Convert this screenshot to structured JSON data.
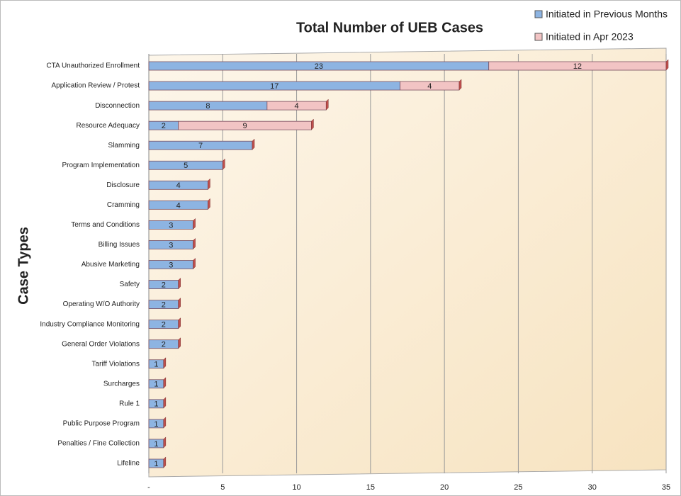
{
  "chart_data": {
    "type": "stacked_barh",
    "title": "Total Number of UEB Cases",
    "y_label": "Case Types",
    "categories": [
      "CTA Unauthorized Enrollment",
      "Application Review / Protest",
      "Disconnection",
      "Resource Adequacy",
      "Slamming",
      "Program Implementation",
      "Disclosure",
      "Cramming",
      "Terms and Conditions",
      "Billing Issues",
      "Abusive Marketing",
      "Safety",
      "Operating W/O Authority",
      "Industry Compliance Monitoring",
      "General Order Violations",
      "Tariff Violations",
      "Surcharges",
      "Rule 1",
      "Public Purpose Program",
      "Penalties / Fine Collection",
      "Lifeline"
    ],
    "series": [
      {
        "name": "Initiated in Previous Months",
        "color": "#8db4e2",
        "values": [
          23,
          17,
          8,
          2,
          7,
          5,
          4,
          4,
          3,
          3,
          3,
          2,
          2,
          2,
          2,
          1,
          1,
          1,
          1,
          1,
          1
        ]
      },
      {
        "name": "Initiated in Apr 2023",
        "color": "#f2c4c4",
        "values": [
          12,
          4,
          4,
          9,
          0,
          0,
          0,
          0,
          0,
          0,
          0,
          0,
          0,
          0,
          0,
          0,
          0,
          0,
          0,
          0,
          0
        ]
      }
    ],
    "xlim": [
      0,
      35
    ],
    "xticks": [
      {
        "value": 0,
        "label": "-"
      },
      5,
      10,
      15,
      20,
      25,
      30,
      35
    ],
    "grid": true,
    "legend": "top-right"
  }
}
